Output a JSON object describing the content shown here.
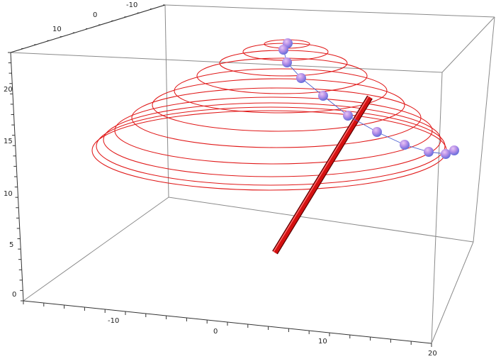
{
  "scene": {
    "box_color": "#8a8a8a",
    "axis_color": "#333333",
    "helix_color": "#e01818",
    "path_color": "#4a5fd0",
    "rod_color": "#d41010",
    "rod_edge_color": "#5a0000",
    "ball_highlight": "#e8c6f4",
    "ball_mid": "#b58fe8",
    "ball_shadow": "#5566d8",
    "ball_count": 12
  },
  "axes": {
    "front_axis_labels": [
      "-10",
      "0",
      "10",
      "20"
    ],
    "back_axis_labels": [
      "10",
      "0",
      "-10"
    ],
    "vertical_axis_labels": [
      "0",
      "5",
      "10",
      "15",
      "20"
    ]
  }
}
